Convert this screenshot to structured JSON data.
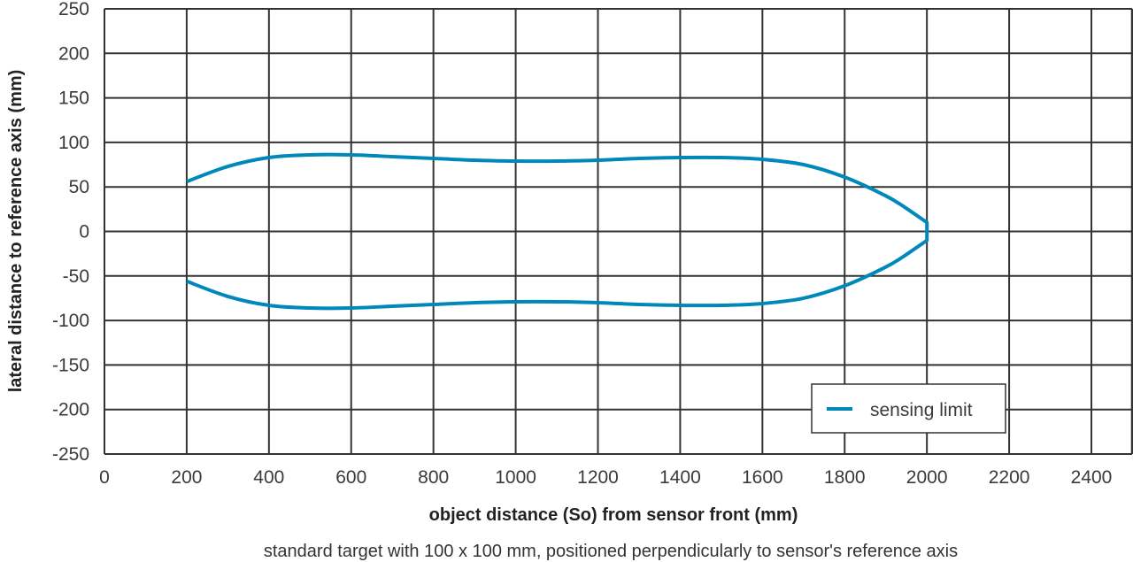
{
  "chart_data": {
    "type": "line",
    "title": "",
    "xlabel": "object distance (So) from sensor front (mm)",
    "ylabel": "lateral distance to reference axis (mm)",
    "subtitle": "standard target with 100 x 100 mm, positioned perpendicularly to sensor's reference axis",
    "xlim": [
      0,
      2500
    ],
    "ylim": [
      -250,
      250
    ],
    "x_ticks": [
      0,
      200,
      400,
      600,
      800,
      1000,
      1200,
      1400,
      1600,
      1800,
      2000,
      2200,
      2400
    ],
    "y_ticks": [
      250,
      200,
      150,
      100,
      50,
      0,
      -50,
      -100,
      -150,
      -200,
      -250
    ],
    "grid": true,
    "legend": {
      "position": "lower right",
      "entries": [
        "sensing limit"
      ]
    },
    "series": [
      {
        "name": "sensing limit",
        "color": "#0088bb",
        "x": [
          200,
          300,
          400,
          500,
          600,
          700,
          800,
          900,
          1000,
          1100,
          1200,
          1300,
          1400,
          1500,
          1600,
          1700,
          1800,
          1900,
          1950,
          2000,
          2000,
          2000,
          1950,
          1900,
          1800,
          1700,
          1600,
          1500,
          1400,
          1300,
          1200,
          1100,
          1000,
          900,
          800,
          700,
          600,
          500,
          400,
          300,
          200
        ],
        "y": [
          56,
          73,
          83,
          86,
          86,
          84,
          82,
          80,
          79,
          79,
          80,
          82,
          83,
          83,
          81,
          75,
          61,
          40,
          26,
          10,
          0,
          -10,
          -26,
          -40,
          -61,
          -75,
          -81,
          -83,
          -83,
          -82,
          -80,
          -79,
          -79,
          -80,
          -82,
          -84,
          -86,
          -86,
          -83,
          -73,
          -56
        ]
      }
    ]
  },
  "labels": {
    "x_axis_title": "object distance (So) from sensor front (mm)",
    "y_axis_title": "lateral distance to reference axis (mm)",
    "subtitle": "standard target with 100 x 100 mm, positioned perpendicularly to sensor's reference axis",
    "legend_entry": "sensing limit"
  },
  "style": {
    "grid_color": "#333333",
    "curve_color": "#0088bb",
    "legend_border": "#333333"
  }
}
